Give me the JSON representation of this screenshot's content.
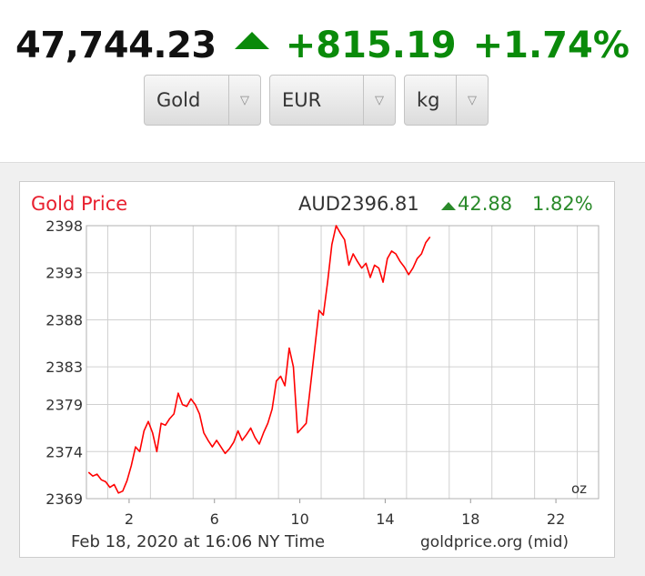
{
  "ticker": {
    "price": "47,744.23",
    "change": "+815.19",
    "change_pct": "+1.74%",
    "direction_icon": "arrow-up-icon",
    "up_color": "#0a8a0a"
  },
  "selectors": {
    "metal": "Gold",
    "currency": "EUR",
    "unit": "kg",
    "dropdown_icon": "chevron-down-icon"
  },
  "chart_data": {
    "type": "line",
    "title": "Gold Price",
    "current_price": "AUD2396.81",
    "current_change": "42.88",
    "current_change_pct": "1.82%",
    "unit_label": "oz",
    "footer_left": "Feb 18, 2020 at 16:06 NY Time",
    "footer_right": "goldprice.org (mid)",
    "xlim": [
      0,
      24
    ],
    "ylim": [
      2369,
      2398
    ],
    "x_ticks": [
      2,
      6,
      10,
      14,
      18,
      22
    ],
    "y_ticks": [
      2398,
      2393,
      2388,
      2383,
      2379,
      2374,
      2369
    ],
    "grid": true,
    "line_color": "#ff0000",
    "title_color": "#e8202f",
    "up_color": "#2a8a2a",
    "series": [
      {
        "x": [
          0.1,
          0.3,
          0.5,
          0.7,
          0.9,
          1.1,
          1.3,
          1.5,
          1.7,
          1.9,
          2.1,
          2.3,
          2.5,
          2.7,
          2.9,
          3.1,
          3.3,
          3.5,
          3.7,
          3.9,
          4.1,
          4.3,
          4.5,
          4.7,
          4.9,
          5.1,
          5.3,
          5.5,
          5.7,
          5.9,
          6.1,
          6.3,
          6.5,
          6.7,
          6.9,
          7.1,
          7.3,
          7.5,
          7.7,
          7.9,
          8.1,
          8.3,
          8.5,
          8.7,
          8.9,
          9.1,
          9.3,
          9.5,
          9.7,
          9.9,
          10.1,
          10.3,
          10.5,
          10.7,
          10.9,
          11.1,
          11.3,
          11.5,
          11.7,
          11.9,
          12.1,
          12.3,
          12.5,
          12.7,
          12.9,
          13.1,
          13.3,
          13.5,
          13.7,
          13.9,
          14.1,
          14.3,
          14.5,
          14.7,
          14.9,
          15.1,
          15.3,
          15.5,
          15.7,
          15.9,
          16.1
        ],
        "y": [
          2371.8,
          2371.4,
          2371.6,
          2371.0,
          2370.8,
          2370.2,
          2370.5,
          2369.6,
          2369.8,
          2370.9,
          2372.5,
          2374.5,
          2374.0,
          2376.2,
          2377.2,
          2376.0,
          2374.0,
          2377.0,
          2376.8,
          2377.5,
          2378.0,
          2380.2,
          2379.0,
          2378.8,
          2379.6,
          2379.0,
          2378.0,
          2376.0,
          2375.2,
          2374.5,
          2375.2,
          2374.5,
          2373.8,
          2374.3,
          2375.0,
          2376.2,
          2375.2,
          2375.8,
          2376.5,
          2375.5,
          2374.8,
          2376.0,
          2377.0,
          2378.5,
          2381.5,
          2382.0,
          2381.0,
          2385.0,
          2383.0,
          2376.0,
          2376.5,
          2377.0,
          2381.0,
          2385.0,
          2389.0,
          2388.5,
          2392.0,
          2396.0,
          2398.0,
          2397.2,
          2396.5,
          2393.8,
          2395.0,
          2394.2,
          2393.5,
          2394.0,
          2392.5,
          2393.8,
          2393.5,
          2392.0,
          2394.5,
          2395.3,
          2395.0,
          2394.2,
          2393.6,
          2392.8,
          2393.5,
          2394.5,
          2395.0,
          2396.2,
          2396.8
        ]
      }
    ]
  }
}
